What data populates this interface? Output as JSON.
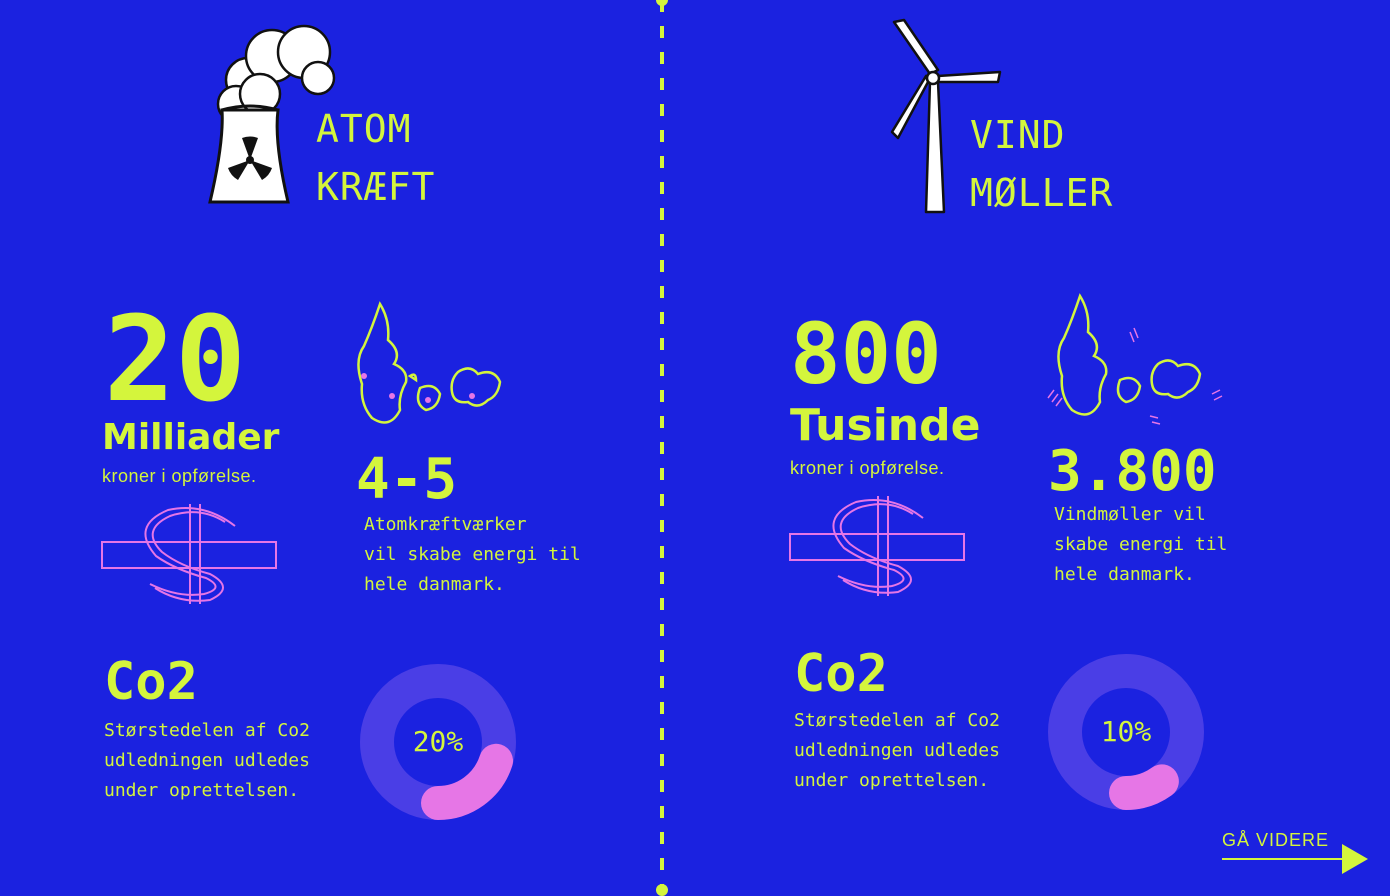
{
  "left": {
    "heading_line1": "ATOM",
    "heading_line2": "KRÆFT",
    "icon": "nuclear-plant-icon",
    "big_number": "20",
    "big_unit": "Milliader",
    "cost_caption": "kroner i opførelse.",
    "plant_count": "4-5",
    "plant_text": "Atomkræftværker\nvil skabe energi til\nhele danmark.",
    "co2_title": "Co2",
    "co2_text": "Størstedelen af Co2\nudledningen udledes\nunder oprettelsen.",
    "co2_percent": "20%",
    "co2_fraction": 0.2
  },
  "right": {
    "heading_line1": "VIND",
    "heading_line2": "MØLLER",
    "icon": "wind-turbine-icon",
    "big_number": "800",
    "big_unit": "Tusinde",
    "cost_caption": "kroner i opførelse.",
    "plant_count": "3.800",
    "plant_text": "Vindmøller vil\nskabe energi til\nhele danmark.",
    "co2_title": "Co2",
    "co2_text": "Størstedelen af Co2\nudledningen udledes\nunder oprettelsen.",
    "co2_percent": "10%",
    "co2_fraction": 0.1
  },
  "nav": {
    "next_label": "GÅ VIDERE"
  },
  "colors": {
    "background": "#1b22e0",
    "accent": "#d4f53c",
    "pink": "#e676e6",
    "ring": "#4a3ee6",
    "map_dot": "#e676e6"
  }
}
